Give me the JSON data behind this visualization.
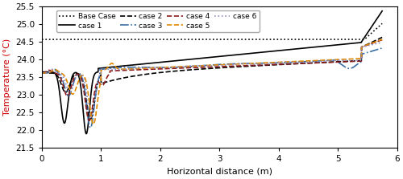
{
  "xlabel": "Horizontal distance (m)",
  "ylabel": "Temperature (°C)",
  "xlim": [
    0,
    6
  ],
  "ylim": [
    21.5,
    25.5
  ],
  "yticks": [
    21.5,
    22.0,
    22.5,
    23.0,
    23.5,
    24.0,
    24.5,
    25.0,
    25.5
  ],
  "xticks": [
    0,
    1,
    2,
    3,
    4,
    5,
    6
  ],
  "legend_entries": [
    {
      "label": "Base Case",
      "color": "#000000",
      "linestyle": "dotted",
      "linewidth": 1.2,
      "dashes": null
    },
    {
      "label": "case 1",
      "color": "#000000",
      "linestyle": "solid",
      "linewidth": 1.2,
      "dashes": null
    },
    {
      "label": "case 2",
      "color": "#000000",
      "linestyle": "dashed",
      "linewidth": 1.2,
      "dashes": null
    },
    {
      "label": "case 3",
      "color": "#3a6ea5",
      "linestyle": "dashdot",
      "linewidth": 1.2,
      "dashes": null
    },
    {
      "label": "case 4",
      "color": "#8b1a1a",
      "linestyle": "dashed",
      "linewidth": 1.2,
      "dashes": null
    },
    {
      "label": "case 5",
      "color": "#e08800",
      "linestyle": "dashed",
      "linewidth": 1.2,
      "dashes": null
    },
    {
      "label": "case 6",
      "color": "#9090c0",
      "linestyle": "dotted",
      "linewidth": 1.2,
      "dashes": null
    }
  ],
  "background_color": "#ffffff",
  "figsize": [
    5.0,
    2.23
  ],
  "dpi": 100
}
